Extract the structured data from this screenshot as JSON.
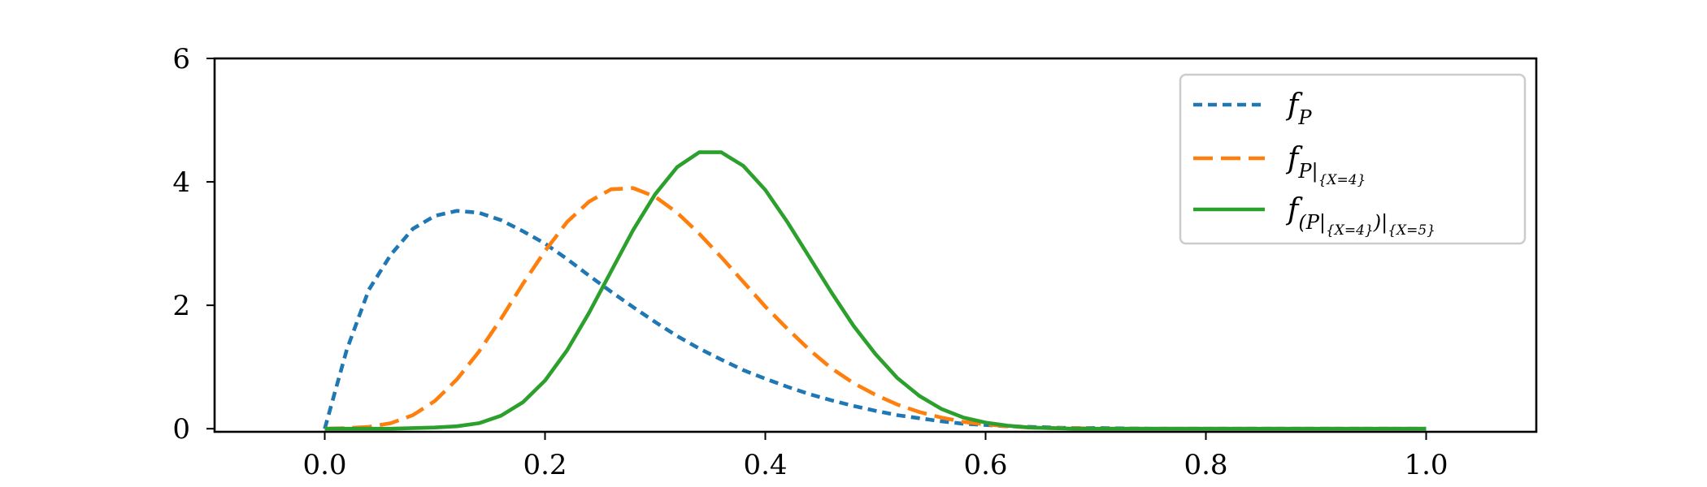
{
  "chart_data": {
    "type": "line",
    "title": "",
    "xlabel": "",
    "ylabel": "",
    "xlim": [
      -0.1,
      1.1
    ],
    "ylim": [
      -0.05,
      6.0
    ],
    "xticks": [
      0.0,
      0.2,
      0.4,
      0.6,
      0.8,
      1.0
    ],
    "xtick_labels": [
      "0.0",
      "0.2",
      "0.4",
      "0.6",
      "0.8",
      "1.0"
    ],
    "yticks": [
      0,
      2,
      4,
      6
    ],
    "ytick_labels": [
      "0",
      "2",
      "4",
      "6"
    ],
    "grid": false,
    "legend_position": "top-right",
    "series": [
      {
        "name": "f_P",
        "legend": {
          "base": "f",
          "sub": "P"
        },
        "color": "#1f77b4",
        "dash": "short",
        "x": [
          0.0,
          0.02,
          0.04,
          0.06,
          0.08,
          0.1,
          0.12,
          0.14,
          0.16,
          0.18,
          0.2,
          0.22,
          0.24,
          0.26,
          0.28,
          0.3,
          0.32,
          0.34,
          0.36,
          0.38,
          0.4,
          0.42,
          0.44,
          0.46,
          0.48,
          0.5,
          0.52,
          0.54,
          0.56,
          0.58,
          0.6,
          0.62,
          0.64,
          0.66,
          0.68,
          0.7,
          0.75,
          0.8,
          0.85,
          0.9,
          0.95,
          1.0
        ],
        "y": [
          0.0,
          1.28,
          2.25,
          2.82,
          3.24,
          3.45,
          3.53,
          3.5,
          3.38,
          3.2,
          3.0,
          2.75,
          2.48,
          2.22,
          1.97,
          1.73,
          1.5,
          1.3,
          1.12,
          0.95,
          0.81,
          0.68,
          0.56,
          0.46,
          0.37,
          0.29,
          0.22,
          0.17,
          0.12,
          0.08,
          0.06,
          0.04,
          0.03,
          0.02,
          0.01,
          0.01,
          0.0,
          0.0,
          0.0,
          0.0,
          0.0,
          0.0
        ]
      },
      {
        "name": "f_{P|{X=4}}",
        "legend": {
          "base": "f",
          "sub": "P|",
          "subsub": "{X=4}"
        },
        "color": "#ff7f0e",
        "dash": "long",
        "x": [
          0.0,
          0.02,
          0.04,
          0.06,
          0.08,
          0.1,
          0.12,
          0.14,
          0.16,
          0.18,
          0.2,
          0.22,
          0.24,
          0.26,
          0.28,
          0.3,
          0.32,
          0.34,
          0.36,
          0.38,
          0.4,
          0.42,
          0.44,
          0.46,
          0.48,
          0.5,
          0.52,
          0.54,
          0.56,
          0.58,
          0.6,
          0.62,
          0.64,
          0.66,
          0.68,
          0.7,
          0.75,
          0.8,
          0.85,
          0.9,
          0.95,
          1.0
        ],
        "y": [
          0.0,
          0.01,
          0.03,
          0.09,
          0.22,
          0.45,
          0.8,
          1.25,
          1.78,
          2.35,
          2.88,
          3.35,
          3.68,
          3.88,
          3.9,
          3.76,
          3.5,
          3.16,
          2.78,
          2.38,
          1.98,
          1.62,
          1.28,
          0.98,
          0.74,
          0.55,
          0.39,
          0.27,
          0.18,
          0.11,
          0.07,
          0.04,
          0.02,
          0.01,
          0.01,
          0.0,
          0.0,
          0.0,
          0.0,
          0.0,
          0.0,
          0.0
        ]
      },
      {
        "name": "f_{(P|{X=4})|{X=5}}",
        "legend": {
          "base": "f",
          "sub_parts": [
            "(P|",
            "{X=4}",
            ")|",
            "{X=5}"
          ]
        },
        "color": "#2ca02c",
        "dash": "solid",
        "x": [
          0.0,
          0.02,
          0.04,
          0.06,
          0.08,
          0.1,
          0.12,
          0.14,
          0.16,
          0.18,
          0.2,
          0.22,
          0.24,
          0.26,
          0.28,
          0.3,
          0.32,
          0.34,
          0.36,
          0.38,
          0.4,
          0.42,
          0.44,
          0.46,
          0.48,
          0.5,
          0.52,
          0.54,
          0.56,
          0.58,
          0.6,
          0.62,
          0.64,
          0.66,
          0.68,
          0.7,
          0.75,
          0.8,
          0.85,
          0.9,
          0.95,
          1.0
        ],
        "y": [
          0.0,
          0.0,
          0.0,
          0.0,
          0.01,
          0.02,
          0.04,
          0.09,
          0.21,
          0.43,
          0.78,
          1.27,
          1.88,
          2.55,
          3.22,
          3.8,
          4.24,
          4.48,
          4.48,
          4.26,
          3.87,
          3.35,
          2.78,
          2.21,
          1.67,
          1.21,
          0.82,
          0.53,
          0.32,
          0.18,
          0.1,
          0.05,
          0.02,
          0.01,
          0.0,
          0.0,
          0.0,
          0.0,
          0.0,
          0.0,
          0.0,
          0.0
        ]
      }
    ]
  }
}
